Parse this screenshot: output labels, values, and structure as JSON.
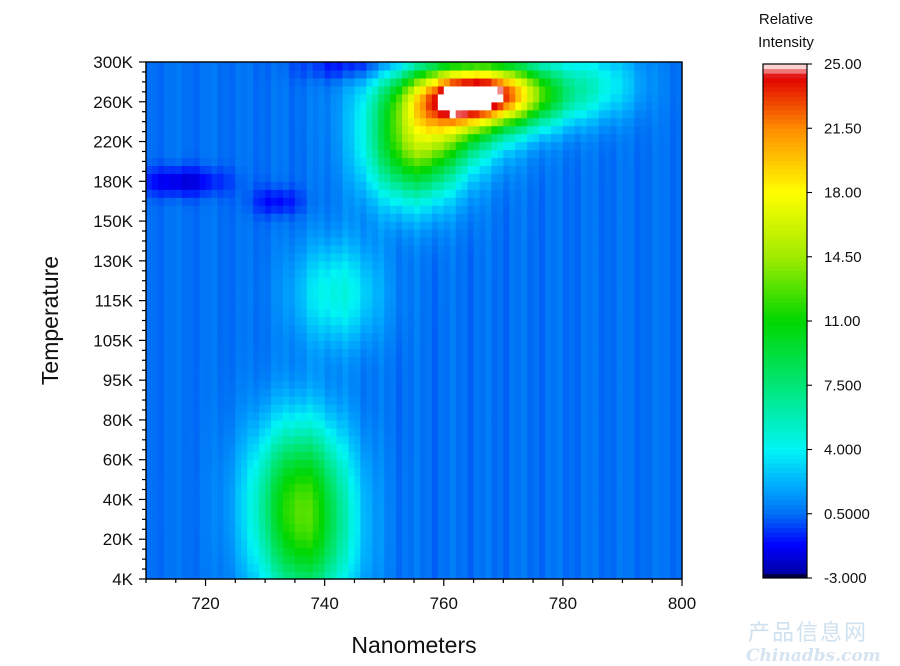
{
  "chart_data": {
    "type": "heatmap",
    "title": "",
    "xlabel": "Nanometers",
    "ylabel": "Temperature",
    "xlim": [
      710,
      800
    ],
    "x_ticks": [
      720,
      740,
      760,
      780,
      800
    ],
    "y_ticks": [
      "4K",
      "20K",
      "40K",
      "60K",
      "80K",
      "95K",
      "105K",
      "115K",
      "130K",
      "150K",
      "180K",
      "220K",
      "260K",
      "300K"
    ],
    "colorbar": {
      "title_lines": [
        "Relative",
        "Intensity"
      ],
      "min": -3.0,
      "max": 25.0,
      "tick_labels": [
        "25.00",
        "21.50",
        "18.00",
        "14.50",
        "11.00",
        "7.500",
        "4.000",
        "0.5000",
        "-3.000"
      ],
      "tick_values": [
        25.0,
        21.5,
        18.0,
        14.5,
        11.0,
        7.5,
        4.0,
        0.5,
        -3.0
      ]
    },
    "background_intensity": 0.6,
    "peaks": [
      {
        "x": 736,
        "temp_index": 2.1,
        "sigma_x": 5.5,
        "sigma_t": 1.3,
        "amplitude": 11.0
      },
      {
        "x": 737,
        "temp_index": 0.4,
        "sigma_x": 5.5,
        "sigma_t": 1.0,
        "amplitude": 4.5
      },
      {
        "x": 742,
        "temp_index": 7.2,
        "sigma_x": 5.0,
        "sigma_t": 0.9,
        "amplitude": 4.0
      },
      {
        "x": 755,
        "temp_index": 10.7,
        "sigma_x": 5.5,
        "sigma_t": 0.9,
        "amplitude": 9.5
      },
      {
        "x": 766,
        "temp_index": 12.2,
        "sigma_x": 8.5,
        "sigma_t": 0.55,
        "amplitude": 25.0
      },
      {
        "x": 760,
        "temp_index": 11.4,
        "sigma_x": 7.0,
        "sigma_t": 0.7,
        "amplitude": 8.0
      },
      {
        "x": 786,
        "temp_index": 12.5,
        "sigma_x": 5.0,
        "sigma_t": 0.6,
        "amplitude": 3.0
      }
    ],
    "dips": [
      {
        "x": 716,
        "temp_index": 10.0,
        "sigma_x": 5.0,
        "sigma_t": 0.25,
        "amplitude": -2.5
      },
      {
        "x": 732,
        "temp_index": 9.5,
        "sigma_x": 3.0,
        "sigma_t": 0.25,
        "amplitude": -1.8
      },
      {
        "x": 745,
        "temp_index": 12.9,
        "sigma_x": 6.0,
        "sigma_t": 0.25,
        "amplitude": -1.8
      }
    ]
  },
  "watermark": {
    "cn": "产品信息网",
    "en": "Chinadbs.com"
  }
}
